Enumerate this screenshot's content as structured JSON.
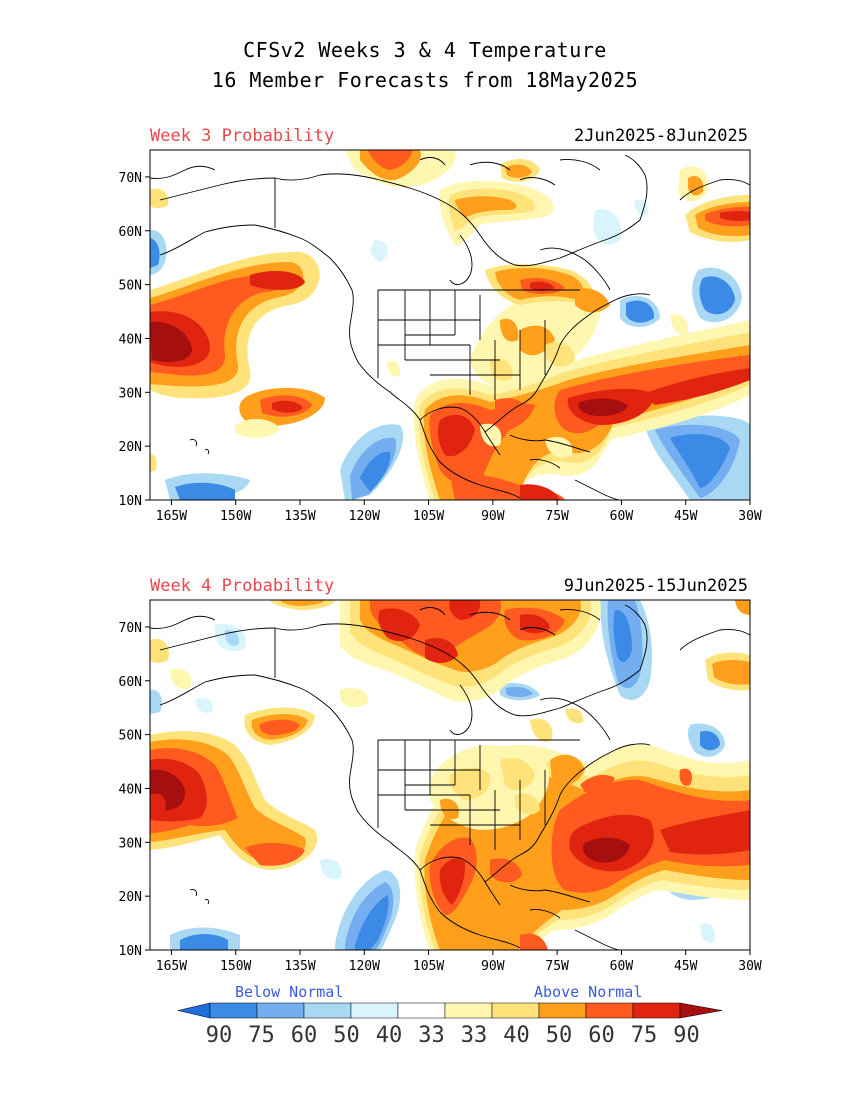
{
  "header": {
    "title_line1": "CFSv2 Weeks 3 & 4 Temperature",
    "title_line2": "16 Member Forecasts from 18May2025"
  },
  "panels": [
    {
      "label": "Week 3 Probability",
      "dates": "2Jun2025-8Jun2025"
    },
    {
      "label": "Week 4 Probability",
      "dates": "9Jun2025-15Jun2025"
    }
  ],
  "axes": {
    "lon_labels": [
      "165W",
      "150W",
      "135W",
      "120W",
      "105W",
      "90W",
      "75W",
      "60W",
      "45W",
      "30W"
    ],
    "lat_labels": [
      "70N",
      "60N",
      "50N",
      "40N",
      "30N",
      "20N",
      "10N"
    ]
  },
  "legend": {
    "below_label": "Below Normal",
    "above_label": "Above Normal",
    "values": [
      "90",
      "75",
      "60",
      "50",
      "40",
      "33",
      "33",
      "40",
      "50",
      "60",
      "75",
      "90"
    ],
    "colors": [
      "#1e6fd9",
      "#3a8ae6",
      "#74aef0",
      "#a9d8f5",
      "#d9f5fb",
      "#ffffff",
      "#fff6b0",
      "#ffe37a",
      "#ff9f1c",
      "#ff5a1f",
      "#e0240f",
      "#a50f0f"
    ]
  },
  "palette": {
    "b90": "#1e6fd9",
    "b75": "#3a8ae6",
    "b60": "#74aef0",
    "b50": "#a9d8f5",
    "b40": "#d9f5fb",
    "a40": "#fff6b0",
    "a50": "#ffe37a",
    "a60": "#ff9f1c",
    "a75": "#ff5a1f",
    "a90": "#e0240f",
    "a100": "#a50f0f"
  }
}
